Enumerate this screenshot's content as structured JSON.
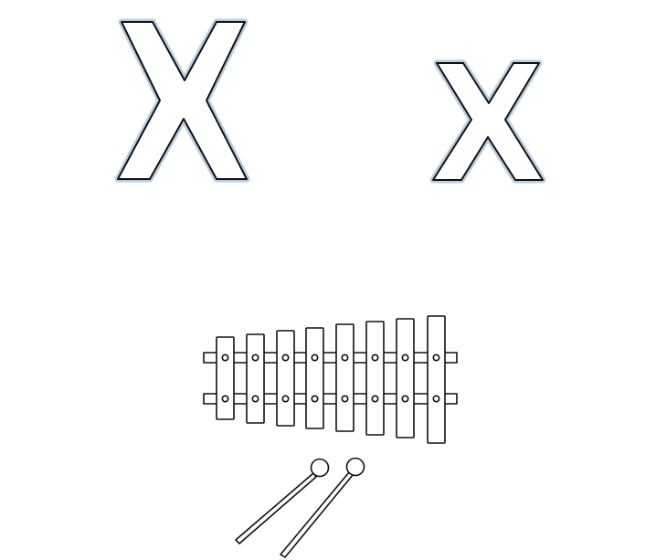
{
  "worksheet": {
    "uppercase_letter": "X",
    "lowercase_letter": "x",
    "picture": "xylophone-illustration",
    "outline_color": "#111111",
    "glow_color": "#b8cde0",
    "background_color": "#ffffff",
    "xylophone": {
      "bar_count": 8,
      "mallet_count": 2
    }
  }
}
